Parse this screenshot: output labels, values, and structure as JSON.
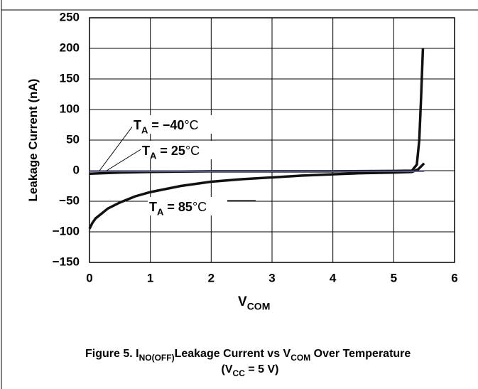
{
  "chart_data": {
    "type": "line",
    "title": [
      {
        "text": "Figure 5. I"
      },
      {
        "sub": "NO(OFF)"
      },
      {
        "text": "Leakage Current vs V"
      },
      {
        "sub": "COM"
      },
      {
        "text": " Over Temperature"
      }
    ],
    "subtitle": [
      {
        "text": "(V"
      },
      {
        "sub": "CC"
      },
      {
        "text": " = 5 V)"
      }
    ],
    "xlabel": [
      {
        "text": "V"
      },
      {
        "sub": "COM"
      }
    ],
    "ylabel": "Leakage Current (nA)",
    "xlim": [
      0,
      6
    ],
    "xticks": [
      0,
      1,
      2,
      3,
      4,
      5,
      6
    ],
    "ylim": [
      -150,
      250
    ],
    "yticks": [
      {
        "value": -150,
        "label": "−150"
      },
      {
        "value": -100,
        "label": "−100"
      },
      {
        "value": -50,
        "label": "−50"
      },
      0,
      50,
      100,
      150,
      200,
      250
    ],
    "grid": true,
    "series": [
      {
        "name": [
          {
            "text": "T"
          },
          {
            "sub": "A"
          },
          {
            "text": " = −40"
          },
          {
            "unit": "°C"
          }
        ],
        "color": "#5c5c8e",
        "x": [
          0,
          1,
          2,
          3,
          4,
          5,
          5.5
        ],
        "values": [
          -1,
          -1,
          -1,
          -1,
          -1,
          -1,
          -1
        ]
      },
      {
        "name": [
          {
            "text": "T"
          },
          {
            "sub": "A"
          },
          {
            "text": " = 25"
          },
          {
            "unit": "°C"
          }
        ],
        "color": "#111111",
        "x": [
          0,
          0.5,
          1,
          2,
          3,
          4,
          5,
          5.3,
          5.38,
          5.42,
          5.45,
          5.48
        ],
        "values": [
          -5,
          -3,
          -2,
          -1,
          -1,
          -1,
          -0.5,
          0,
          10,
          50,
          120,
          200
        ]
      },
      {
        "name": [
          {
            "text": "T"
          },
          {
            "sub": "A"
          },
          {
            "text": " = 85"
          },
          {
            "unit": "°C"
          }
        ],
        "color": "#111111",
        "x": [
          0,
          0.05,
          0.1,
          0.2,
          0.3,
          0.5,
          0.75,
          1,
          1.5,
          2,
          2.5,
          3,
          3.5,
          4,
          4.5,
          5,
          5.3,
          5.4,
          5.5
        ],
        "values": [
          -95,
          -85,
          -78,
          -70,
          -62,
          -52,
          -42,
          -35,
          -25,
          -18,
          -14,
          -11,
          -8,
          -6,
          -4,
          -3,
          -2,
          2,
          12
        ]
      }
    ]
  }
}
